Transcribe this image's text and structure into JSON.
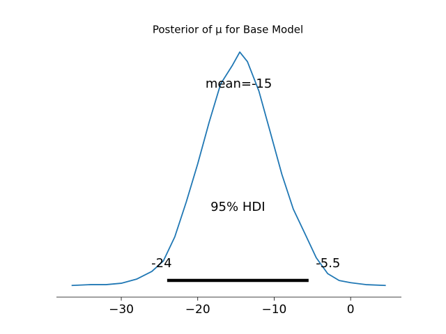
{
  "chart_data": {
    "type": "line",
    "title": "Posterior of μ for Base Model",
    "x": [
      -36.5,
      -34,
      -32,
      -30,
      -28,
      -26,
      -24.5,
      -23,
      -21.5,
      -20,
      -18.5,
      -17,
      -15.5,
      -14.5,
      -13.5,
      -12,
      -10.5,
      -9,
      -7.5,
      -6,
      -4.5,
      -3,
      -1.5,
      0,
      2,
      4.6
    ],
    "series": [
      {
        "color": "#1f77b4",
        "values": [
          0.0,
          0.0003,
          0.0003,
          0.0008,
          0.0023,
          0.0051,
          0.0089,
          0.0177,
          0.0304,
          0.0443,
          0.0595,
          0.0734,
          0.08,
          0.085,
          0.0815,
          0.0708,
          0.0557,
          0.0405,
          0.0278,
          0.019,
          0.0101,
          0.0043,
          0.0018,
          0.001,
          0.0003,
          0.0
        ]
      }
    ],
    "xlim": [
      -38.48,
      6.64
    ],
    "ylim": [
      -0.00425,
      0.08925
    ],
    "xticks": [
      {
        "value": -30,
        "label": "−30"
      },
      {
        "value": -20,
        "label": "−20"
      },
      {
        "value": -10,
        "label": "−10"
      },
      {
        "value": 0,
        "label": "0"
      }
    ],
    "mean_label": "mean=-15",
    "mean": -15,
    "hdi_label": "95% HDI",
    "hdi": [
      -24,
      -5.5
    ],
    "hdi_color": "#000000"
  }
}
